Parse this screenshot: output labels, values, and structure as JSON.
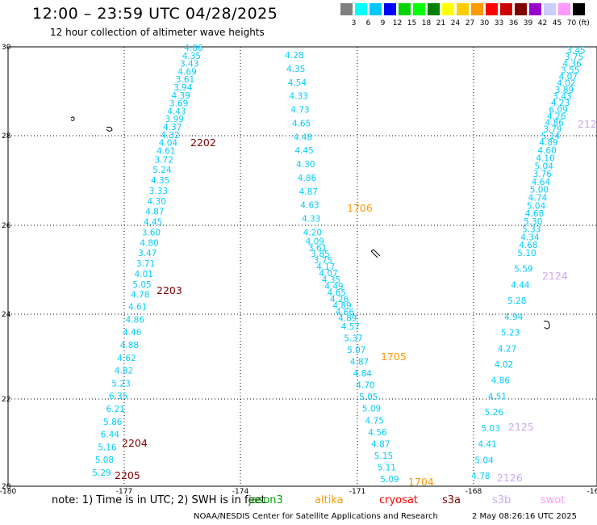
{
  "title": "12:00 – 23:59 UTC 04/28/2025",
  "subtitle": "12 hour collection of altimeter wave heights",
  "legend": {
    "unit": "(ft)",
    "colors": [
      "#7f7f7f",
      "#00ffff",
      "#00c8ff",
      "#0000ff",
      "#00d400",
      "#00ff00",
      "#008000",
      "#ffff00",
      "#ffcc00",
      "#ff9900",
      "#ff0000",
      "#cc0000",
      "#800000",
      "#9900cc",
      "#ccccff",
      "#ff99ff",
      "#000000"
    ],
    "labels": [
      "3",
      "6",
      "9",
      "12",
      "15",
      "18",
      "21",
      "24",
      "27",
      "30",
      "33",
      "36",
      "39",
      "42",
      "45",
      "70"
    ]
  },
  "axes": {
    "x_ticks": [
      "-180",
      "-177",
      "-174",
      "-171",
      "-168",
      "-16"
    ],
    "y_ticks": [
      "30",
      "28",
      "26",
      "24",
      "22",
      "20"
    ]
  },
  "tracks": [
    {
      "values": [
        "4.86",
        "4.35",
        "3.43",
        "4.69",
        "3.61",
        "3.94",
        "4.39",
        "3.69",
        "4.43",
        "3.99",
        "4.37",
        "4.32",
        "4.04",
        "4.61",
        "3.72",
        "5.24",
        "4.35",
        "3.33",
        "4.30",
        "4.87",
        "4.45",
        "3.60",
        "4.80",
        "3.47",
        "3.71",
        "4.01",
        "5.05",
        "4.78",
        "4.61",
        "4.86",
        "4.46",
        "4.88",
        "4.62",
        "4.82",
        "5.23",
        "6.35",
        "6.21",
        "5.86",
        "6.44",
        "5.16",
        "5.08",
        "5.29"
      ]
    },
    {
      "values": [
        "4.28",
        "4.35",
        "4.54",
        "4.33",
        "4.73",
        "4.65",
        "4.48",
        "4.45",
        "4.30",
        "4.86",
        "4.87",
        "4.63",
        "4.33",
        "4.20",
        "4.09",
        "3.61",
        "3.85",
        "3.75",
        "4.17",
        "4.07",
        "4.35",
        "4.49",
        "4.65",
        "4.26",
        "4.89",
        "4.66",
        "4.89",
        "4.57",
        "5.37",
        "5.07",
        "4.87",
        "4.84",
        "4.70",
        "5.05",
        "5.09",
        "4.75",
        "4.56",
        "4.87",
        "5.15",
        "5.11",
        "5.09"
      ]
    },
    {
      "values": [
        "3.45",
        "3.75",
        "4.36",
        "3.55",
        "4.07",
        "4.02",
        "3.89",
        "3.43",
        "4.23",
        "6.09",
        "4.26",
        "4.86",
        "3.79",
        "5.14",
        "4.89",
        "4.60",
        "4.10",
        "5.04",
        "3.76",
        "4.64",
        "5.00",
        "4.74",
        "5.04",
        "4.68",
        "5.30",
        "5.33",
        "4.34",
        "4.68",
        "5.10",
        "5.59",
        "4.44",
        "5.28",
        "4.94",
        "5.23",
        "4.27",
        "4.02",
        "4.86",
        "4.51",
        "5.26",
        "5.03",
        "4.41",
        "5.04",
        "4.78"
      ]
    }
  ],
  "time_labels": [
    {
      "text": "2202",
      "sat": "s3a"
    },
    {
      "text": "2203",
      "sat": "s3a"
    },
    {
      "text": "2204",
      "sat": "s3a"
    },
    {
      "text": "2205",
      "sat": "s3a"
    },
    {
      "text": "1706",
      "sat": "altika"
    },
    {
      "text": "1705",
      "sat": "altika"
    },
    {
      "text": "1704",
      "sat": "altika"
    },
    {
      "text": "212",
      "sat": "s3b"
    },
    {
      "text": "2124",
      "sat": "s3b"
    },
    {
      "text": "2125",
      "sat": "s3b"
    },
    {
      "text": "2126",
      "sat": "s3b"
    }
  ],
  "sat_colors": {
    "s3a": "#800000",
    "altika": "#ff9900",
    "s3b": "#c8a8f0",
    "value": "#00ccff"
  },
  "note": {
    "text": "note:  1) Time is in UTC;  2) SWH is in feet",
    "satellites": [
      {
        "name": "jason3",
        "color": "#00a000"
      },
      {
        "name": "altika",
        "color": "#ff9900"
      },
      {
        "name": "cryosat",
        "color": "#ff0000"
      },
      {
        "name": "s3a",
        "color": "#800000"
      },
      {
        "name": "s3b",
        "color": "#c8a8f0"
      },
      {
        "name": "swot",
        "color": "#ff99ff"
      }
    ]
  },
  "footer": {
    "credits": "NOAA/NESDIS Center for Satellite Applications and Research",
    "timestamp": "2 May 08:26:16 UTC 2025"
  }
}
